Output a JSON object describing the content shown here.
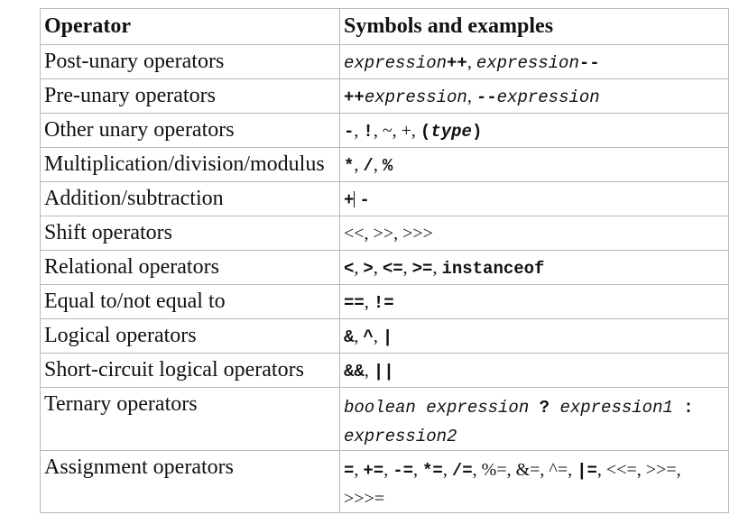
{
  "table": {
    "headers": {
      "operator": "Operator",
      "symbols": "Symbols and examples"
    },
    "rows": [
      {
        "operator": "Post-unary operators",
        "parts": [
          {
            "t": "expression",
            "s": "mono-ital"
          },
          {
            "t": "++",
            "s": "mono-bold"
          },
          {
            "t": ", ",
            "s": "serif-small"
          },
          {
            "t": "expression",
            "s": "mono-ital"
          },
          {
            "t": "--",
            "s": "mono-bold"
          }
        ]
      },
      {
        "operator": "Pre-unary operators",
        "parts": [
          {
            "t": "++",
            "s": "mono-bold"
          },
          {
            "t": "expression",
            "s": "mono-ital"
          },
          {
            "t": ", ",
            "s": "serif-small"
          },
          {
            "t": "--",
            "s": "mono-bold"
          },
          {
            "t": "expression",
            "s": "mono-ital"
          }
        ]
      },
      {
        "operator": "Other unary operators",
        "parts": [
          {
            "t": "-",
            "s": "mono-bold"
          },
          {
            "t": ", ",
            "s": "serif-small"
          },
          {
            "t": "!",
            "s": "mono-bold"
          },
          {
            "t": ", ~, +, ",
            "s": "serif-small"
          },
          {
            "t": "(",
            "s": "mono-bold"
          },
          {
            "t": "type",
            "s": "mono-bi"
          },
          {
            "t": ")",
            "s": "mono-bold"
          }
        ]
      },
      {
        "operator": "Multiplication/division/modulus",
        "parts": [
          {
            "t": "*",
            "s": "mono-bold"
          },
          {
            "t": ", ",
            "s": "serif-small"
          },
          {
            "t": "/",
            "s": "mono-bold"
          },
          {
            "t": ", ",
            "s": "serif-small"
          },
          {
            "t": "%",
            "s": "mono-bold"
          }
        ]
      },
      {
        "operator": "Addition/subtraction",
        "parts": [
          {
            "t": "+",
            "s": "mono-bold"
          },
          {
            "t": "caret",
            "s": "caret"
          },
          {
            "t": " ",
            "s": "serif-small"
          },
          {
            "t": "-",
            "s": "mono-bold"
          }
        ]
      },
      {
        "operator": "Shift operators",
        "parts": [
          {
            "t": "<<, >>, >>>",
            "s": "serif-small"
          }
        ]
      },
      {
        "operator": "Relational operators",
        "parts": [
          {
            "t": "<",
            "s": "mono-bold"
          },
          {
            "t": ", ",
            "s": "serif-small"
          },
          {
            "t": ">",
            "s": "mono-bold"
          },
          {
            "t": ", ",
            "s": "serif-small"
          },
          {
            "t": "<=",
            "s": "mono-bold"
          },
          {
            "t": ", ",
            "s": "serif-small"
          },
          {
            "t": ">=",
            "s": "mono-bold"
          },
          {
            "t": ", ",
            "s": "serif-small"
          },
          {
            "t": "instanceof",
            "s": "mono-bold"
          }
        ]
      },
      {
        "operator": "Equal to/not equal to",
        "parts": [
          {
            "t": "==",
            "s": "mono-bold"
          },
          {
            "t": ", ",
            "s": "serif-small"
          },
          {
            "t": "!=",
            "s": "mono-bold"
          }
        ]
      },
      {
        "operator": "Logical operators",
        "parts": [
          {
            "t": "&",
            "s": "mono-bold"
          },
          {
            "t": ", ",
            "s": "serif-small"
          },
          {
            "t": "^",
            "s": "mono-bold"
          },
          {
            "t": ", ",
            "s": "serif-small"
          },
          {
            "t": "|",
            "s": "mono-bold"
          }
        ]
      },
      {
        "operator": "Short-circuit logical operators",
        "parts": [
          {
            "t": "&&",
            "s": "mono-bold"
          },
          {
            "t": ", ",
            "s": "serif-small"
          },
          {
            "t": "||",
            "s": "mono-bold"
          }
        ]
      },
      {
        "operator": "Ternary operators",
        "tall": true,
        "parts": [
          {
            "t": "boolean expression",
            "s": "mono-ital"
          },
          {
            "t": " ? ",
            "s": "mono-bold"
          },
          {
            "t": "expression1",
            "s": "mono-ital"
          },
          {
            "t": " :",
            "s": "mono-bold"
          },
          {
            "t": "br",
            "s": "br"
          },
          {
            "t": "expression2",
            "s": "mono-ital"
          }
        ]
      },
      {
        "operator": "Assignment operators",
        "tall": true,
        "parts": [
          {
            "t": "=",
            "s": "mono-bold"
          },
          {
            "t": ", ",
            "s": "serif-small"
          },
          {
            "t": "+=",
            "s": "mono-bold"
          },
          {
            "t": ", ",
            "s": "serif-small"
          },
          {
            "t": "-=",
            "s": "mono-bold"
          },
          {
            "t": ", ",
            "s": "serif-small"
          },
          {
            "t": "*=",
            "s": "mono-bold"
          },
          {
            "t": ", ",
            "s": "serif-small"
          },
          {
            "t": "/=",
            "s": "mono-bold"
          },
          {
            "t": ", %=, &=, ^=, ",
            "s": "serif-small"
          },
          {
            "t": "|=",
            "s": "mono-bold"
          },
          {
            "t": ", <<=, >>=,",
            "s": "serif-small"
          },
          {
            "t": "br",
            "s": "br"
          },
          {
            "t": ">>>=",
            "s": "serif-small"
          }
        ]
      }
    ]
  }
}
